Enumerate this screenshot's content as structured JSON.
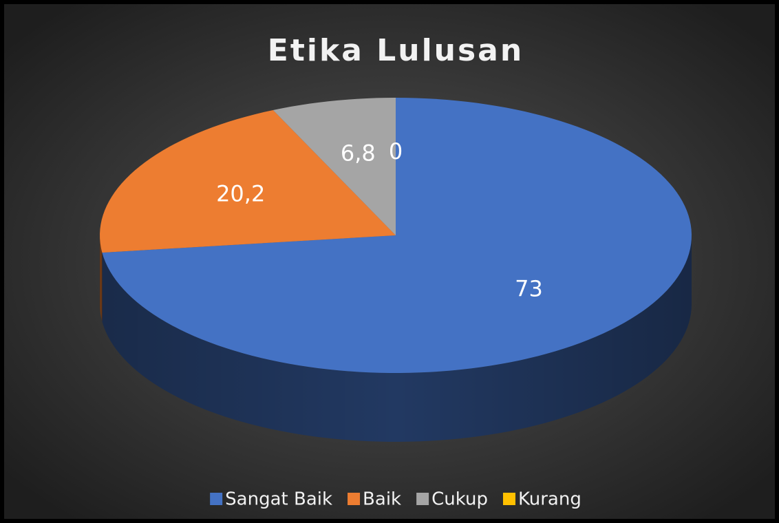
{
  "chart_data": {
    "type": "pie",
    "title": "Etika Lulusan",
    "categories": [
      "Sangat Baik",
      "Baik",
      "Cukup",
      "Kurang"
    ],
    "values": [
      73,
      20.2,
      6.8,
      0
    ],
    "value_labels": [
      "73",
      "20,2",
      "6,8",
      "0"
    ],
    "colors": [
      "#4472c4",
      "#ed7d31",
      "#a5a5a5",
      "#ffc000"
    ],
    "legend": "bottom"
  }
}
